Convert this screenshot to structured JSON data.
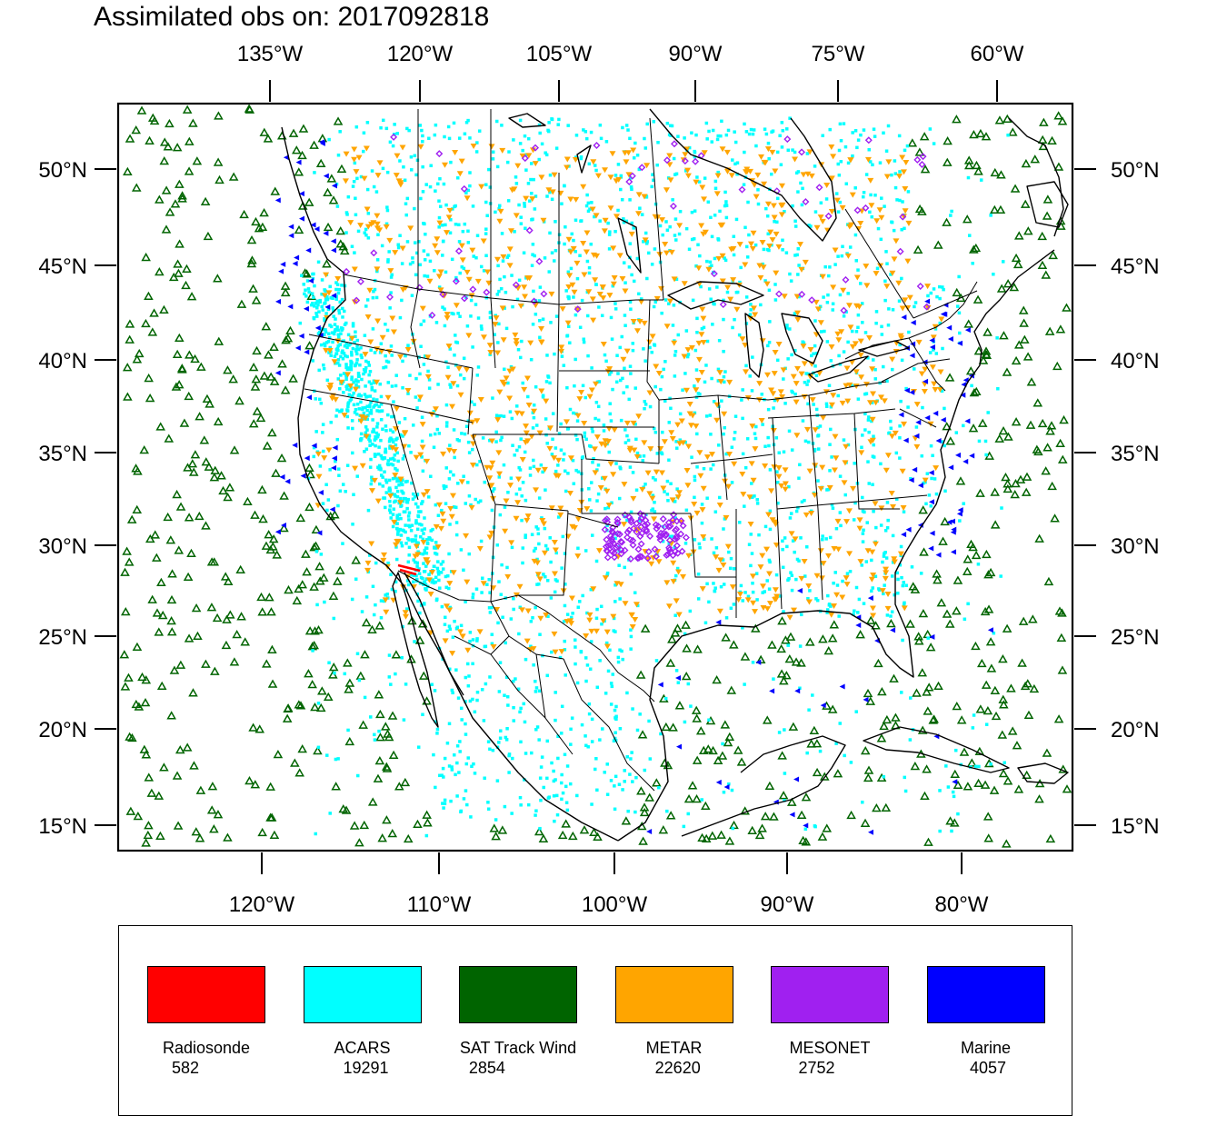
{
  "title": "Assimilated obs on: 2017092818",
  "map": {
    "top_axis_labels": [
      "135°W",
      "120°W",
      "105°W",
      "90°W",
      "75°W",
      "60°W"
    ],
    "bottom_axis_labels": [
      "120°W",
      "110°W",
      "100°W",
      "90°W",
      "80°W"
    ],
    "lat_labels": [
      "50°N",
      "45°N",
      "40°N",
      "35°N",
      "30°N",
      "25°N",
      "20°N",
      "15°N"
    ]
  },
  "legend": [
    {
      "name": "Radiosonde",
      "count": "582",
      "color": "#ff0000"
    },
    {
      "name": "ACARS",
      "count": "19291",
      "color": "#00ffff"
    },
    {
      "name": "SAT Track Wind",
      "count": "2854",
      "color": "#006400"
    },
    {
      "name": "METAR",
      "count": "22620",
      "color": "#ffa500"
    },
    {
      "name": "MESONET",
      "count": "2752",
      "color": "#a020f0"
    },
    {
      "name": "Marine",
      "count": "4057",
      "color": "#0000ff"
    }
  ]
}
